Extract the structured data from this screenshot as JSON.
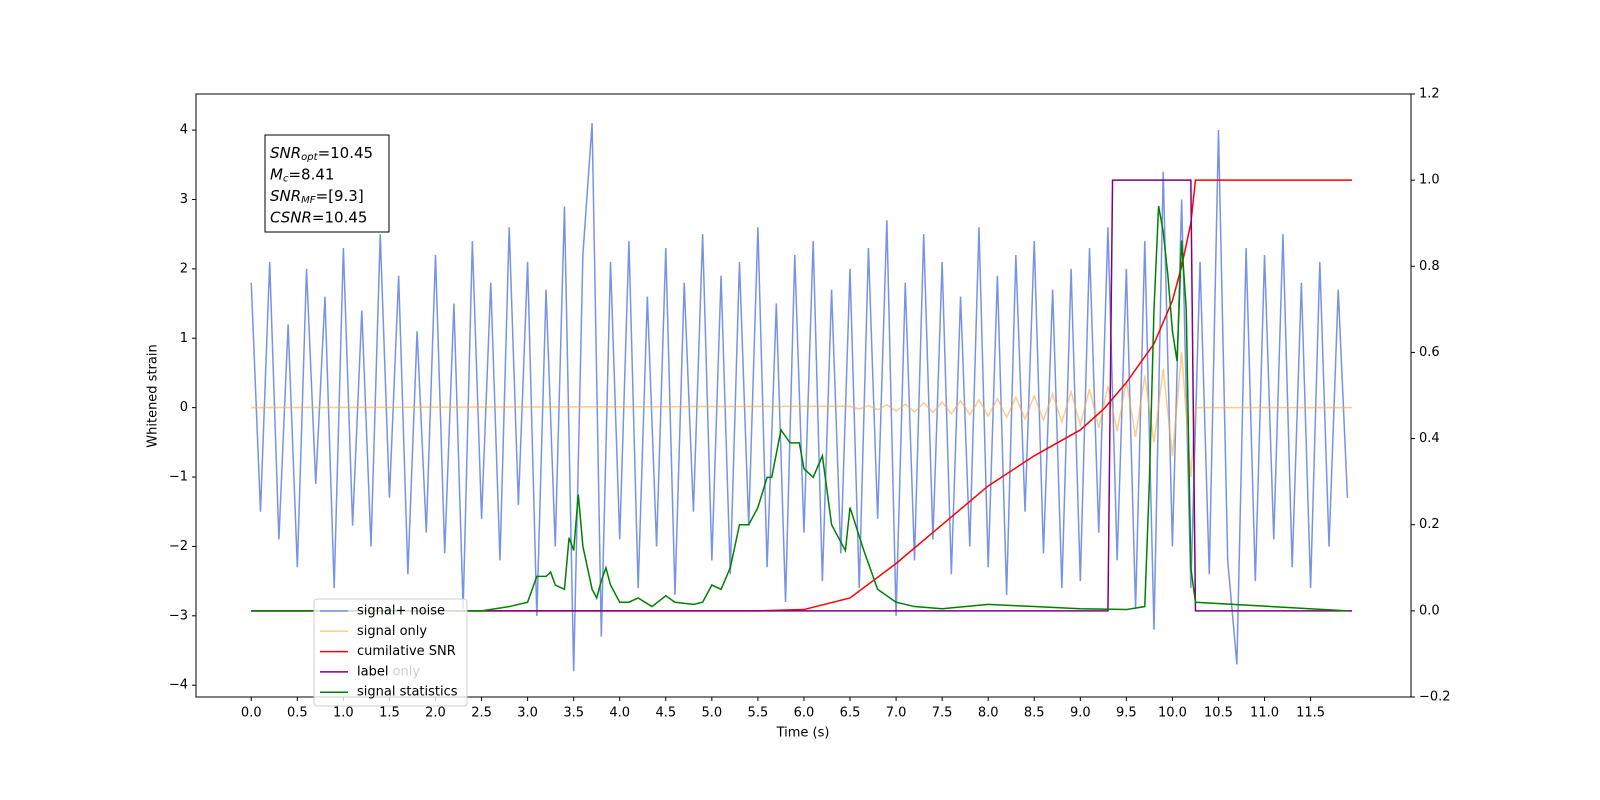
{
  "chart_data": {
    "type": "line",
    "xlabel": "Time (s)",
    "ylabel": "Whitened strain",
    "xlim": [
      -0.6,
      12.59
    ],
    "ylim": [
      -4.17,
      4.52
    ],
    "y2lim": [
      -0.2,
      1.2
    ],
    "xticks": [
      {
        "value": 0,
        "label": "0.0"
      },
      {
        "value": 0.5,
        "label": "0.5"
      },
      {
        "value": 1,
        "label": "1.0"
      },
      {
        "value": 1.5,
        "label": "1.5"
      },
      {
        "value": 2,
        "label": "2.0"
      },
      {
        "value": 2.5,
        "label": "2.5"
      },
      {
        "value": 3,
        "label": "3.0"
      },
      {
        "value": 3.5,
        "label": "3.5"
      },
      {
        "value": 4,
        "label": "4.0"
      },
      {
        "value": 4.5,
        "label": "4.5"
      },
      {
        "value": 5,
        "label": "5.0"
      },
      {
        "value": 5.5,
        "label": "5.5"
      },
      {
        "value": 6,
        "label": "6.0"
      },
      {
        "value": 6.5,
        "label": "6.5"
      },
      {
        "value": 7,
        "label": "7.0"
      },
      {
        "value": 7.5,
        "label": "7.5"
      },
      {
        "value": 8,
        "label": "8.0"
      },
      {
        "value": 8.5,
        "label": "8.5"
      },
      {
        "value": 9,
        "label": "9.0"
      },
      {
        "value": 9.5,
        "label": "9.5"
      },
      {
        "value": 10,
        "label": "10.0"
      },
      {
        "value": 10.5,
        "label": "10.5"
      },
      {
        "value": 11,
        "label": "11.0"
      },
      {
        "value": 11.5,
        "label": "11.5"
      }
    ],
    "yticks": [
      {
        "value": -4,
        "label": "−4"
      },
      {
        "value": -3,
        "label": "−3"
      },
      {
        "value": -2,
        "label": "−2"
      },
      {
        "value": -1,
        "label": "−1"
      },
      0,
      1,
      2,
      3,
      4
    ],
    "y2ticks": [
      {
        "value": -0.2,
        "label": "−0.2"
      },
      {
        "value": 0,
        "label": "0.0"
      },
      {
        "value": 0.2,
        "label": "0.2"
      },
      {
        "value": 0.4,
        "label": "0.4"
      },
      {
        "value": 0.6,
        "label": "0.6"
      },
      {
        "value": 0.8,
        "label": "0.8"
      },
      {
        "value": 1,
        "label": "1.0"
      },
      {
        "value": 1.2,
        "label": "1.2"
      }
    ],
    "annotations": [
      {
        "text": "SNR",
        "sub": "opt",
        "rest": "=10.45"
      },
      {
        "text": "M",
        "sub": "c",
        "rest": "=8.41"
      },
      {
        "text": "SNR",
        "sub": "MF",
        "rest": "=[9.3]"
      },
      {
        "text": "CSNR",
        "rest": "=10.45"
      }
    ],
    "legend_hidden": "label only",
    "legend": "lower left",
    "series": [
      {
        "name": "signal+ noise",
        "color": "#7793e6",
        "x": [
          0,
          0.1,
          0.2,
          0.3,
          0.4,
          0.5,
          0.6,
          0.7,
          0.8,
          0.9,
          1,
          1.1,
          1.2,
          1.3,
          1.4,
          1.5,
          1.6,
          1.7,
          1.8,
          1.9,
          2,
          2.1,
          2.2,
          2.3,
          2.4,
          2.5,
          2.6,
          2.7,
          2.8,
          2.9,
          3,
          3.1,
          3.2,
          3.3,
          3.4,
          3.5,
          3.6,
          3.7,
          3.8,
          3.9,
          4,
          4.1,
          4.2,
          4.3,
          4.4,
          4.5,
          4.6,
          4.7,
          4.8,
          4.9,
          5,
          5.1,
          5.2,
          5.3,
          5.4,
          5.5,
          5.6,
          5.7,
          5.8,
          5.9,
          6,
          6.1,
          6.2,
          6.3,
          6.4,
          6.5,
          6.6,
          6.7,
          6.8,
          6.9,
          7,
          7.1,
          7.2,
          7.3,
          7.4,
          7.5,
          7.6,
          7.7,
          7.8,
          7.9,
          8,
          8.1,
          8.2,
          8.3,
          8.4,
          8.5,
          8.6,
          8.7,
          8.8,
          8.9,
          9,
          9.1,
          9.2,
          9.3,
          9.4,
          9.5,
          9.6,
          9.7,
          9.8,
          9.9,
          10,
          10.1,
          10.2,
          10.3,
          10.4,
          10.5,
          10.6,
          10.7,
          10.8,
          10.9,
          11,
          11.1,
          11.2,
          11.3,
          11.4,
          11.5,
          11.6,
          11.7,
          11.8,
          11.9
        ],
        "values": [
          1.8,
          -1.5,
          2.1,
          -1.9,
          1.2,
          -2.3,
          2.0,
          -1.1,
          1.6,
          -2.6,
          2.3,
          -1.7,
          1.4,
          -2.0,
          2.5,
          -1.3,
          1.9,
          -2.4,
          1.1,
          -1.8,
          2.2,
          -2.1,
          1.5,
          -2.9,
          2.4,
          -1.6,
          1.8,
          -2.2,
          2.6,
          -1.4,
          2.1,
          -3.0,
          1.7,
          -2.0,
          2.9,
          -3.8,
          2.2,
          4.1,
          -3.3,
          2.1,
          -1.9,
          2.4,
          -2.6,
          1.6,
          -2.0,
          2.3,
          -2.7,
          1.8,
          -1.5,
          2.5,
          -2.2,
          1.9,
          -2.4,
          2.1,
          -1.7,
          2.6,
          -2.3,
          1.5,
          -2.8,
          2.2,
          -1.8,
          2.4,
          -2.5,
          1.7,
          -2.1,
          2.0,
          -2.6,
          2.3,
          -1.6,
          2.7,
          -3.0,
          1.8,
          -2.2,
          2.5,
          -1.9,
          2.1,
          -2.4,
          1.6,
          -2.0,
          2.6,
          -2.3,
          1.9,
          -2.7,
          2.2,
          -1.5,
          2.4,
          -2.1,
          1.7,
          -2.6,
          2.0,
          -2.5,
          2.3,
          -1.8,
          2.6,
          -2.2,
          2.0,
          -2.9,
          2.4,
          -3.2,
          3.4,
          -2.0,
          3.0,
          -2.6,
          2.1,
          -2.4,
          4.0,
          -2.2,
          -3.7,
          2.3,
          -2.5,
          2.2,
          -1.9,
          2.5,
          -2.3,
          1.8,
          -2.6,
          2.1,
          -2.0,
          1.7,
          -1.3
        ]
      },
      {
        "name": "signal only",
        "color": "#ffa940",
        "x": [
          0,
          6.5,
          6.6,
          6.7,
          6.8,
          6.9,
          7,
          7.1,
          7.2,
          7.3,
          7.4,
          7.5,
          7.6,
          7.7,
          7.8,
          7.9,
          8,
          8.1,
          8.2,
          8.3,
          8.4,
          8.5,
          8.6,
          8.7,
          8.8,
          8.9,
          9,
          9.1,
          9.2,
          9.3,
          9.4,
          9.5,
          9.6,
          9.7,
          9.8,
          9.9,
          10,
          10.1,
          10.2,
          10.25,
          11.95
        ],
        "values": [
          0,
          0.02,
          -0.02,
          0.03,
          -0.03,
          0.04,
          -0.05,
          0.05,
          -0.06,
          0.07,
          -0.07,
          0.08,
          -0.09,
          0.1,
          -0.1,
          0.11,
          -0.12,
          0.13,
          -0.14,
          0.15,
          -0.16,
          0.17,
          -0.18,
          0.2,
          -0.21,
          0.23,
          -0.25,
          0.27,
          -0.29,
          0.31,
          -0.34,
          0.38,
          -0.42,
          0.46,
          -0.5,
          0.56,
          -0.7,
          0.8,
          -1.0,
          0,
          0
        ]
      },
      {
        "name": "cumilative SNR",
        "color": "#ff0000",
        "axis": "y2",
        "x": [
          0,
          5.5,
          6,
          6.5,
          7,
          7.5,
          8,
          8.5,
          9,
          9.26,
          9.5,
          9.8,
          10,
          10.1,
          10.2,
          10.25,
          11.95
        ],
        "values": [
          0,
          0,
          0.003,
          0.03,
          0.11,
          0.2,
          0.29,
          0.36,
          0.42,
          0.47,
          0.53,
          0.62,
          0.72,
          0.8,
          0.9,
          1,
          1
        ]
      },
      {
        "name": "label",
        "color": "#800080",
        "axis": "y2",
        "x": [
          0,
          9.3,
          9.35,
          10.2,
          10.25,
          11.95
        ],
        "values": [
          0,
          0,
          1,
          1,
          0,
          0
        ]
      },
      {
        "name": "signal statistics",
        "color": "#008000",
        "axis": "y2",
        "x": [
          0,
          2.5,
          2.8,
          3,
          3.1,
          3.2,
          3.25,
          3.3,
          3.4,
          3.45,
          3.5,
          3.55,
          3.6,
          3.7,
          3.75,
          3.8,
          3.85,
          3.9,
          4,
          4.1,
          4.2,
          4.35,
          4.5,
          4.6,
          4.8,
          4.9,
          5,
          5.1,
          5.2,
          5.3,
          5.4,
          5.5,
          5.6,
          5.65,
          5.75,
          5.85,
          5.95,
          6,
          6.1,
          6.2,
          6.3,
          6.45,
          6.5,
          6.65,
          6.8,
          7,
          7.2,
          7.5,
          8,
          8.5,
          9,
          9.5,
          9.7,
          9.75,
          9.8,
          9.85,
          9.9,
          9.95,
          10,
          10.05,
          10.1,
          10.15,
          10.2,
          10.25,
          11.9
        ],
        "values": [
          0,
          0,
          0.01,
          0.02,
          0.08,
          0.08,
          0.09,
          0.06,
          0.05,
          0.17,
          0.14,
          0.27,
          0.15,
          0.05,
          0.03,
          0.07,
          0.1,
          0.06,
          0.02,
          0.02,
          0.03,
          0.01,
          0.035,
          0.02,
          0.015,
          0.02,
          0.06,
          0.05,
          0.1,
          0.2,
          0.2,
          0.24,
          0.31,
          0.31,
          0.42,
          0.39,
          0.39,
          0.33,
          0.31,
          0.36,
          0.2,
          0.14,
          0.24,
          0.14,
          0.05,
          0.02,
          0.01,
          0.005,
          0.015,
          0.01,
          0.005,
          0.003,
          0.01,
          0.3,
          0.7,
          0.94,
          0.88,
          0.78,
          0.65,
          0.58,
          0.86,
          0.7,
          0.1,
          0.02,
          0
        ]
      }
    ]
  }
}
